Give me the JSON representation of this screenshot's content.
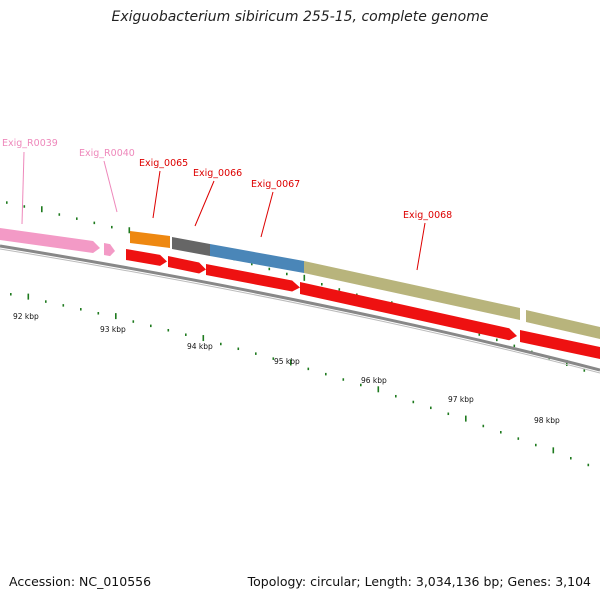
{
  "title": "Exiguobacterium sibiricum 255-15, complete genome",
  "footer": {
    "accession": "Accession: NC_010556",
    "summary": "Topology: circular; Length: 3,034,136 bp; Genes: 3,104"
  },
  "colors": {
    "rna_gene": "#f39ac6",
    "cds_arrow": "#ee1111",
    "label_red": "#dd0000",
    "label_pink": "#ee88bb",
    "backbone": "#888888",
    "tick_green": "#1e7a1e",
    "band_orange": "#ee8811",
    "band_gray": "#666666",
    "band_blue": "#4a86b8",
    "band_olive": "#b8b47c"
  },
  "genes": [
    {
      "label": "Exig_R0039",
      "kind": "rna",
      "color": "#f39ac6",
      "label_color": "#ee88bb"
    },
    {
      "label": "Exig_R0040",
      "kind": "rna",
      "color": "#f39ac6",
      "label_color": "#ee88bb"
    },
    {
      "label": "Exig_0065",
      "kind": "cds",
      "color": "#ee8811",
      "label_color": "#dd0000"
    },
    {
      "label": "Exig_0066",
      "kind": "cds",
      "color": "#666666",
      "label_color": "#dd0000"
    },
    {
      "label": "Exig_0067",
      "kind": "cds",
      "color": "#4a86b8",
      "label_color": "#dd0000"
    },
    {
      "label": "Exig_0068",
      "kind": "cds",
      "color": "#b8b47c",
      "label_color": "#dd0000"
    }
  ],
  "kbp_ticks": [
    "92 kbp",
    "93 kbp",
    "94 kbp",
    "95 kbp",
    "96 kbp",
    "97 kbp",
    "98 kbp"
  ]
}
